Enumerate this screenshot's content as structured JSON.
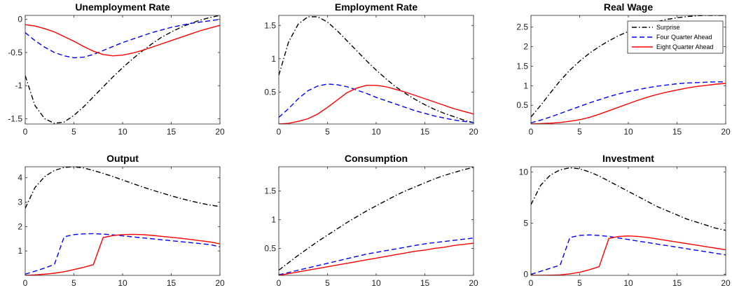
{
  "chart_data": [
    {
      "type": "line",
      "title": "Unemployment Rate",
      "xlim": [
        0,
        20
      ],
      "ylim": [
        -1.58,
        0.06
      ],
      "xticks": [
        0,
        5,
        10,
        15,
        20
      ],
      "yticks": [
        -1.5,
        -1,
        -0.5,
        0
      ],
      "yticklabels": [
        "-1.5",
        "-1",
        "-0.5",
        "0"
      ],
      "x": [
        0,
        1,
        2,
        3,
        4,
        5,
        6,
        7,
        8,
        9,
        10,
        11,
        12,
        13,
        14,
        15,
        16,
        17,
        18,
        19,
        20
      ],
      "series": [
        {
          "name": "Surprise",
          "values": [
            -0.85,
            -1.3,
            -1.5,
            -1.57,
            -1.55,
            -1.45,
            -1.32,
            -1.17,
            -1.02,
            -0.87,
            -0.73,
            -0.6,
            -0.48,
            -0.37,
            -0.27,
            -0.19,
            -0.12,
            -0.06,
            -0.01,
            0.03,
            0.06
          ]
        },
        {
          "name": "Four Quarter Ahead",
          "values": [
            -0.2,
            -0.32,
            -0.42,
            -0.5,
            -0.55,
            -0.58,
            -0.57,
            -0.53,
            -0.47,
            -0.41,
            -0.35,
            -0.3,
            -0.25,
            -0.2,
            -0.16,
            -0.12,
            -0.09,
            -0.06,
            -0.04,
            -0.02,
            0.0
          ]
        },
        {
          "name": "Eight Quarter Ahead",
          "values": [
            -0.08,
            -0.1,
            -0.14,
            -0.19,
            -0.26,
            -0.33,
            -0.41,
            -0.48,
            -0.53,
            -0.55,
            -0.54,
            -0.51,
            -0.47,
            -0.42,
            -0.37,
            -0.32,
            -0.27,
            -0.22,
            -0.17,
            -0.13,
            -0.09
          ]
        }
      ]
    },
    {
      "type": "line",
      "title": "Employment Rate",
      "xlim": [
        0,
        20
      ],
      "ylim": [
        0.02,
        1.65
      ],
      "xticks": [
        0,
        5,
        10,
        15,
        20
      ],
      "yticks": [
        0.5,
        1,
        1.5
      ],
      "yticklabels": [
        "0.5",
        "1",
        "1.5"
      ],
      "x": [
        0,
        1,
        2,
        3,
        4,
        5,
        6,
        7,
        8,
        9,
        10,
        11,
        12,
        13,
        14,
        15,
        16,
        17,
        18,
        19,
        20
      ],
      "series": [
        {
          "name": "Surprise",
          "values": [
            0.75,
            1.25,
            1.52,
            1.63,
            1.63,
            1.55,
            1.42,
            1.27,
            1.12,
            0.97,
            0.83,
            0.7,
            0.58,
            0.48,
            0.39,
            0.31,
            0.24,
            0.18,
            0.13,
            0.08,
            0.04
          ]
        },
        {
          "name": "Four Quarter Ahead",
          "values": [
            0.12,
            0.25,
            0.4,
            0.52,
            0.59,
            0.62,
            0.61,
            0.58,
            0.53,
            0.48,
            0.42,
            0.37,
            0.32,
            0.27,
            0.22,
            0.18,
            0.14,
            0.11,
            0.08,
            0.06,
            0.04
          ]
        },
        {
          "name": "Eight Quarter Ahead",
          "values": [
            0.02,
            0.03,
            0.06,
            0.1,
            0.17,
            0.27,
            0.38,
            0.49,
            0.56,
            0.6,
            0.6,
            0.58,
            0.54,
            0.5,
            0.45,
            0.4,
            0.35,
            0.3,
            0.25,
            0.21,
            0.17
          ]
        }
      ]
    },
    {
      "type": "line",
      "title": "Real Wage",
      "xlim": [
        0,
        20
      ],
      "ylim": [
        0.02,
        2.8
      ],
      "xticks": [
        0,
        5,
        10,
        15,
        20
      ],
      "yticks": [
        0.5,
        1,
        1.5,
        2,
        2.5
      ],
      "yticklabels": [
        "0.5",
        "1",
        "1.5",
        "2",
        "2.5"
      ],
      "legend": {
        "position": "top-right",
        "entries": [
          "Surprise",
          "Four Quarter Ahead",
          "Eight Quarter Ahead"
        ]
      },
      "x": [
        0,
        1,
        2,
        3,
        4,
        5,
        6,
        7,
        8,
        9,
        10,
        11,
        12,
        13,
        14,
        15,
        16,
        17,
        18,
        19,
        20
      ],
      "series": [
        {
          "name": "Surprise",
          "values": [
            0.2,
            0.5,
            0.82,
            1.13,
            1.4,
            1.63,
            1.83,
            2.0,
            2.15,
            2.28,
            2.39,
            2.49,
            2.57,
            2.64,
            2.7,
            2.74,
            2.77,
            2.79,
            2.8,
            2.8,
            2.8
          ]
        },
        {
          "name": "Four Quarter Ahead",
          "values": [
            0.05,
            0.12,
            0.2,
            0.29,
            0.38,
            0.47,
            0.56,
            0.64,
            0.72,
            0.79,
            0.85,
            0.9,
            0.95,
            0.99,
            1.02,
            1.05,
            1.07,
            1.08,
            1.09,
            1.1,
            1.1
          ]
        },
        {
          "name": "Eight Quarter Ahead",
          "values": [
            0.02,
            0.03,
            0.04,
            0.06,
            0.09,
            0.13,
            0.19,
            0.27,
            0.36,
            0.45,
            0.54,
            0.63,
            0.71,
            0.78,
            0.84,
            0.89,
            0.94,
            0.98,
            1.01,
            1.04,
            1.06
          ]
        }
      ]
    },
    {
      "type": "line",
      "title": "Output",
      "xlim": [
        0,
        20
      ],
      "ylim": [
        0,
        4.45
      ],
      "xticks": [
        0,
        5,
        10,
        15,
        20
      ],
      "yticks": [
        1,
        2,
        3,
        4
      ],
      "yticklabels": [
        "1",
        "2",
        "3",
        "4"
      ],
      "x": [
        0,
        1,
        2,
        3,
        4,
        5,
        6,
        7,
        8,
        9,
        10,
        11,
        12,
        13,
        14,
        15,
        16,
        17,
        18,
        19,
        20
      ],
      "series": [
        {
          "name": "Surprise",
          "values": [
            2.75,
            3.6,
            4.05,
            4.3,
            4.42,
            4.45,
            4.4,
            4.3,
            4.18,
            4.05,
            3.91,
            3.77,
            3.63,
            3.5,
            3.38,
            3.26,
            3.15,
            3.05,
            2.96,
            2.88,
            2.82
          ]
        },
        {
          "name": "Four Quarter Ahead",
          "values": [
            0.05,
            0.17,
            0.3,
            0.45,
            1.58,
            1.67,
            1.7,
            1.71,
            1.69,
            1.66,
            1.62,
            1.58,
            1.54,
            1.5,
            1.46,
            1.42,
            1.38,
            1.34,
            1.3,
            1.26,
            1.17
          ]
        },
        {
          "name": "Eight Quarter Ahead",
          "values": [
            0.0,
            0.02,
            0.05,
            0.09,
            0.15,
            0.24,
            0.33,
            0.44,
            1.55,
            1.63,
            1.67,
            1.68,
            1.67,
            1.64,
            1.6,
            1.56,
            1.52,
            1.47,
            1.42,
            1.37,
            1.29
          ]
        }
      ]
    },
    {
      "type": "line",
      "title": "Consumption",
      "xlim": [
        0,
        20
      ],
      "ylim": [
        0.03,
        1.92
      ],
      "xticks": [
        0,
        5,
        10,
        15,
        20
      ],
      "yticks": [
        0.5,
        1,
        1.5
      ],
      "yticklabels": [
        "0.5",
        "1",
        "1.5"
      ],
      "x": [
        0,
        1,
        2,
        3,
        4,
        5,
        6,
        7,
        8,
        9,
        10,
        11,
        12,
        13,
        14,
        15,
        16,
        17,
        18,
        19,
        20
      ],
      "series": [
        {
          "name": "Surprise",
          "values": [
            0.12,
            0.25,
            0.38,
            0.5,
            0.62,
            0.73,
            0.84,
            0.95,
            1.05,
            1.15,
            1.24,
            1.33,
            1.42,
            1.5,
            1.57,
            1.64,
            1.71,
            1.77,
            1.82,
            1.87,
            1.91
          ]
        },
        {
          "name": "Four Quarter Ahead",
          "values": [
            0.04,
            0.08,
            0.12,
            0.16,
            0.2,
            0.24,
            0.28,
            0.32,
            0.36,
            0.4,
            0.43,
            0.46,
            0.49,
            0.52,
            0.55,
            0.58,
            0.6,
            0.62,
            0.64,
            0.66,
            0.68
          ]
        },
        {
          "name": "Eight Quarter Ahead",
          "values": [
            0.03,
            0.06,
            0.09,
            0.12,
            0.15,
            0.18,
            0.21,
            0.24,
            0.27,
            0.3,
            0.33,
            0.36,
            0.39,
            0.42,
            0.45,
            0.47,
            0.5,
            0.52,
            0.55,
            0.57,
            0.59
          ]
        }
      ]
    },
    {
      "type": "line",
      "title": "Investment",
      "xlim": [
        0,
        20
      ],
      "ylim": [
        -0.1,
        10.5
      ],
      "xticks": [
        0,
        5,
        10,
        15,
        20
      ],
      "yticks": [
        0,
        5,
        10
      ],
      "yticklabels": [
        "0",
        "5",
        "10"
      ],
      "x": [
        0,
        1,
        2,
        3,
        4,
        5,
        6,
        7,
        8,
        9,
        10,
        11,
        12,
        13,
        14,
        15,
        16,
        17,
        18,
        19,
        20
      ],
      "series": [
        {
          "name": "Surprise",
          "values": [
            6.8,
            8.7,
            9.7,
            10.2,
            10.4,
            10.3,
            10.0,
            9.6,
            9.1,
            8.6,
            8.1,
            7.6,
            7.1,
            6.6,
            6.2,
            5.8,
            5.4,
            5.1,
            4.8,
            4.5,
            4.3
          ]
        },
        {
          "name": "Four Quarter Ahead",
          "values": [
            0.0,
            0.3,
            0.6,
            0.9,
            3.6,
            3.8,
            3.85,
            3.8,
            3.7,
            3.55,
            3.4,
            3.25,
            3.1,
            2.95,
            2.8,
            2.65,
            2.5,
            2.35,
            2.2,
            2.05,
            1.9
          ]
        },
        {
          "name": "Eight Quarter Ahead",
          "values": [
            -0.1,
            -0.1,
            -0.08,
            -0.05,
            0.05,
            0.2,
            0.45,
            0.75,
            3.5,
            3.7,
            3.75,
            3.7,
            3.6,
            3.45,
            3.3,
            3.15,
            3.0,
            2.85,
            2.7,
            2.55,
            2.4
          ]
        }
      ]
    }
  ],
  "style": {
    "series_colors": [
      "#000000",
      "#0000ff",
      "#ff0000"
    ],
    "series_dash": [
      "dashdot",
      "dashed",
      "solid"
    ],
    "axis_color": "#262626"
  }
}
